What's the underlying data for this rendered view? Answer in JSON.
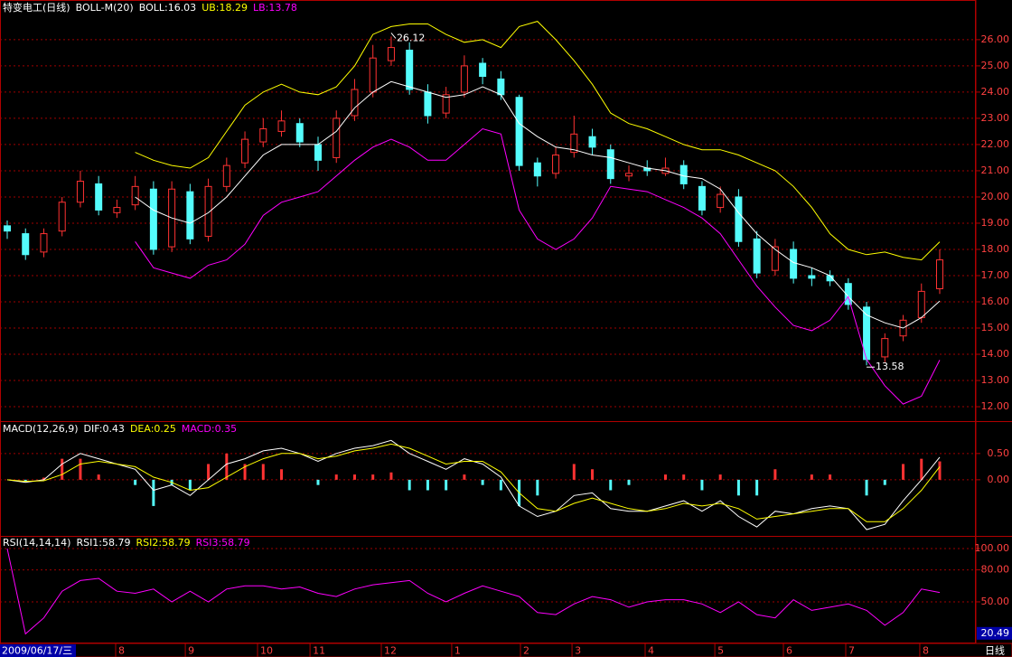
{
  "chart_data": [
    {
      "type": "candlestick",
      "title": "特变电工(日线)",
      "legend": [
        {
          "text": "特变电工(日线)",
          "color": "#ffffff"
        },
        {
          "text": "BOLL-M(20)",
          "color": "#ffffff"
        },
        {
          "text": "BOLL:16.03",
          "color": "#ffffff"
        },
        {
          "text": "UB:18.29",
          "color": "#ffff00"
        },
        {
          "text": "LB:13.78",
          "color": "#ff00ff"
        }
      ],
      "open": [
        18.9,
        18.6,
        17.9,
        18.7,
        19.8,
        20.5,
        19.4,
        19.7,
        20.3,
        18.1,
        20.2,
        18.5,
        20.4,
        21.3,
        22.1,
        22.5,
        22.8,
        22.0,
        21.5,
        23.1,
        24.0,
        25.2,
        25.6,
        24.0,
        23.2,
        24.0,
        25.1,
        24.5,
        23.8,
        21.3,
        20.9,
        21.7,
        22.3,
        21.8,
        20.8,
        21.1,
        20.9,
        21.2,
        20.4,
        19.6,
        20.0,
        18.4,
        17.2,
        18.0,
        17.0,
        17.0,
        16.7,
        15.8,
        13.9,
        14.7,
        15.4,
        16.5
      ],
      "high": [
        19.1,
        18.8,
        18.8,
        20.0,
        21.0,
        20.8,
        19.9,
        20.8,
        20.6,
        20.6,
        20.5,
        20.7,
        21.5,
        22.5,
        23.0,
        23.3,
        23.0,
        22.3,
        23.3,
        24.5,
        25.8,
        26.12,
        25.9,
        24.3,
        24.2,
        25.4,
        25.3,
        24.8,
        23.9,
        21.5,
        21.9,
        23.1,
        22.6,
        22.0,
        21.2,
        21.4,
        21.5,
        21.4,
        20.6,
        20.4,
        20.3,
        18.7,
        18.4,
        18.3,
        17.3,
        17.2,
        16.9,
        16.0,
        14.8,
        15.5,
        16.7,
        18.0
      ],
      "low": [
        18.4,
        17.6,
        17.7,
        18.5,
        19.6,
        19.3,
        19.2,
        19.5,
        17.8,
        17.9,
        18.2,
        18.3,
        20.2,
        21.1,
        21.9,
        22.3,
        21.9,
        21.0,
        21.3,
        22.9,
        23.8,
        25.0,
        23.9,
        22.8,
        23.0,
        23.8,
        24.3,
        23.7,
        21.0,
        20.4,
        20.7,
        21.5,
        21.6,
        20.5,
        20.6,
        20.8,
        20.8,
        20.3,
        19.3,
        19.4,
        18.1,
        16.9,
        17.0,
        16.7,
        16.6,
        16.6,
        15.7,
        13.58,
        13.7,
        14.5,
        15.2,
        16.3
      ],
      "close": [
        18.7,
        17.8,
        18.6,
        19.8,
        20.6,
        19.5,
        19.6,
        20.4,
        18.0,
        20.3,
        18.4,
        20.4,
        21.2,
        22.2,
        22.6,
        22.9,
        22.1,
        21.4,
        23.0,
        24.1,
        25.3,
        25.7,
        24.1,
        23.1,
        23.9,
        25.0,
        24.6,
        23.9,
        21.2,
        20.8,
        21.6,
        22.4,
        21.9,
        20.7,
        20.9,
        21.0,
        21.1,
        20.5,
        19.5,
        20.1,
        18.3,
        17.1,
        18.1,
        16.9,
        16.9,
        16.8,
        15.9,
        13.8,
        14.6,
        15.3,
        16.4,
        17.6
      ],
      "up_color": "#ff3232",
      "down_color": "#54fcfc",
      "series": [
        {
          "color": "#ffffff",
          "values": [
            null,
            null,
            null,
            null,
            null,
            null,
            null,
            20.0,
            19.5,
            19.2,
            19.0,
            19.4,
            20.0,
            20.8,
            21.6,
            22.0,
            22.0,
            22.0,
            22.5,
            23.4,
            24.0,
            24.4,
            24.2,
            24.0,
            23.8,
            23.9,
            24.2,
            23.9,
            22.8,
            22.3,
            21.9,
            21.8,
            21.6,
            21.5,
            21.3,
            21.1,
            21.0,
            20.8,
            20.7,
            20.3,
            19.4,
            18.6,
            18.0,
            17.5,
            17.3,
            17.0,
            16.2,
            15.5,
            15.2,
            15.0,
            15.4,
            16.03
          ]
        },
        {
          "color": "#ffff00",
          "values": [
            null,
            null,
            null,
            null,
            null,
            null,
            null,
            21.7,
            21.4,
            21.2,
            21.1,
            21.5,
            22.5,
            23.5,
            24.0,
            24.3,
            24.0,
            23.9,
            24.2,
            25.0,
            26.2,
            26.5,
            26.6,
            26.6,
            26.2,
            25.9,
            26.0,
            25.7,
            26.5,
            26.7,
            26.0,
            25.2,
            24.3,
            23.2,
            22.8,
            22.6,
            22.3,
            22.0,
            21.8,
            21.8,
            21.6,
            21.3,
            21.0,
            20.4,
            19.6,
            18.6,
            18.0,
            17.8,
            17.9,
            17.7,
            17.6,
            18.29
          ]
        },
        {
          "color": "#ff00ff",
          "values": [
            null,
            null,
            null,
            null,
            null,
            null,
            null,
            18.3,
            17.3,
            17.1,
            16.9,
            17.4,
            17.6,
            18.2,
            19.3,
            19.8,
            20.0,
            20.2,
            20.8,
            21.4,
            21.9,
            22.2,
            21.9,
            21.4,
            21.4,
            22.0,
            22.6,
            22.4,
            19.5,
            18.4,
            18.0,
            18.4,
            19.2,
            20.4,
            20.3,
            20.2,
            19.9,
            19.6,
            19.2,
            18.6,
            17.6,
            16.6,
            15.8,
            15.1,
            14.9,
            15.3,
            16.2,
            13.8,
            12.8,
            12.1,
            12.4,
            13.78
          ]
        }
      ],
      "annotations": {
        "high_label": "26.12",
        "low_label": "13.58"
      },
      "ylim": [
        11.45,
        27.03
      ],
      "yticks": [
        {
          "value": 12,
          "label": "12.00"
        },
        {
          "value": 13,
          "label": "13.00"
        },
        {
          "value": 14,
          "label": "14.00"
        },
        {
          "value": 15,
          "label": "15.00"
        },
        {
          "value": 16,
          "label": "16.00"
        },
        {
          "value": 17,
          "label": "17.00"
        },
        {
          "value": 18,
          "label": "18.00"
        },
        {
          "value": 19,
          "label": "19.00"
        },
        {
          "value": 20,
          "label": "20.00"
        },
        {
          "value": 21,
          "label": "21.00"
        },
        {
          "value": 22,
          "label": "22.00"
        },
        {
          "value": 23,
          "label": "23.00"
        },
        {
          "value": 24,
          "label": "24.00"
        },
        {
          "value": 25,
          "label": "25.00"
        },
        {
          "value": 26,
          "label": "26.00"
        }
      ],
      "grid": true
    },
    {
      "type": "macd",
      "legend": [
        {
          "text": "MACD(12,26,9)",
          "color": "#ffffff"
        },
        {
          "text": "DIF:0.43",
          "color": "#ffffff"
        },
        {
          "text": "DEA:0.25",
          "color": "#ffff00"
        },
        {
          "text": "MACD:0.35",
          "color": "#ff00ff"
        }
      ],
      "bars": [
        0,
        -0.04,
        0.04,
        0.4,
        0.4,
        0.1,
        0,
        -0.1,
        -0.5,
        -0.1,
        -0.2,
        0.3,
        0.5,
        0.3,
        0.3,
        0.2,
        0,
        -0.1,
        0.1,
        0.1,
        0.1,
        0.14,
        -0.2,
        -0.2,
        -0.2,
        0.1,
        -0.1,
        -0.2,
        -0.5,
        -0.3,
        0,
        0.3,
        0.2,
        -0.2,
        -0.1,
        0,
        0.1,
        0.1,
        -0.2,
        0.1,
        -0.3,
        -0.3,
        0.2,
        0,
        0.1,
        0.1,
        0,
        -0.3,
        -0.1,
        0.3,
        0.4,
        0.35
      ],
      "up_color": "#ff3232",
      "down_color": "#54fcfc",
      "series": [
        {
          "color": "#ffffff",
          "values": [
            0.0,
            -0.05,
            0.0,
            0.3,
            0.5,
            0.4,
            0.3,
            0.2,
            -0.2,
            -0.1,
            -0.3,
            0.0,
            0.3,
            0.4,
            0.55,
            0.6,
            0.5,
            0.35,
            0.5,
            0.6,
            0.65,
            0.75,
            0.5,
            0.35,
            0.2,
            0.4,
            0.3,
            0.05,
            -0.5,
            -0.7,
            -0.6,
            -0.3,
            -0.25,
            -0.55,
            -0.6,
            -0.6,
            -0.5,
            -0.4,
            -0.6,
            -0.4,
            -0.7,
            -0.9,
            -0.6,
            -0.65,
            -0.55,
            -0.5,
            -0.55,
            -0.95,
            -0.85,
            -0.4,
            0.0,
            0.43
          ]
        },
        {
          "color": "#ffff00",
          "values": [
            0.0,
            -0.03,
            -0.02,
            0.1,
            0.3,
            0.35,
            0.3,
            0.25,
            0.05,
            -0.05,
            -0.2,
            -0.15,
            0.05,
            0.25,
            0.4,
            0.5,
            0.5,
            0.4,
            0.45,
            0.55,
            0.6,
            0.68,
            0.6,
            0.45,
            0.3,
            0.35,
            0.35,
            0.15,
            -0.25,
            -0.55,
            -0.6,
            -0.45,
            -0.35,
            -0.45,
            -0.55,
            -0.6,
            -0.55,
            -0.45,
            -0.5,
            -0.45,
            -0.55,
            -0.75,
            -0.7,
            -0.65,
            -0.6,
            -0.55,
            -0.55,
            -0.8,
            -0.8,
            -0.55,
            -0.2,
            0.25
          ]
        }
      ],
      "ylim": [
        -1.07,
        1.1
      ],
      "yticks": [
        {
          "value": 0,
          "label": "0.00"
        },
        {
          "value": 0.5,
          "label": "0.50"
        }
      ],
      "grid": true
    },
    {
      "type": "rsi",
      "legend": [
        {
          "text": "RSI(14,14,14)",
          "color": "#ffffff"
        },
        {
          "text": "RSI1:58.79",
          "color": "#ffffff"
        },
        {
          "text": "RSI2:58.79",
          "color": "#ffff00"
        },
        {
          "text": "RSI3:58.79",
          "color": "#ff00ff"
        }
      ],
      "series": [
        {
          "color": "#ff00ff",
          "values": [
            100,
            20,
            35,
            60,
            70,
            72,
            60,
            58,
            62,
            50,
            60,
            50,
            62,
            65,
            65,
            62,
            64,
            58,
            55,
            62,
            66,
            68,
            70,
            58,
            50,
            58,
            65,
            60,
            55,
            40,
            38,
            48,
            55,
            52,
            45,
            50,
            52,
            52,
            48,
            40,
            50,
            38,
            35,
            52,
            42,
            45,
            48,
            42,
            28,
            40,
            62,
            58.79
          ]
        }
      ],
      "ylim": [
        11,
        111
      ],
      "yticks": [
        {
          "value": 50,
          "label": "50.00"
        },
        {
          "value": 80,
          "label": "80.00"
        },
        {
          "value": 100,
          "label": "100.00"
        }
      ],
      "cursor_value": 20.49,
      "grid": true,
      "cursor_date": "2009/06/17/三",
      "period": "日线",
      "xticks": [
        {
          "value": 5.93,
          "label": "8"
        },
        {
          "value": 9.74,
          "label": "9"
        },
        {
          "value": 13.69,
          "label": "10"
        },
        {
          "value": 16.56,
          "label": "11"
        },
        {
          "value": 20.46,
          "label": "12"
        },
        {
          "value": 24.31,
          "label": "1"
        },
        {
          "value": 28.07,
          "label": "2"
        },
        {
          "value": 30.89,
          "label": "3"
        },
        {
          "value": 34.89,
          "label": "4"
        },
        {
          "value": 38.7,
          "label": "5"
        },
        {
          "value": 42.45,
          "label": "6"
        },
        {
          "value": 45.86,
          "label": "7"
        },
        {
          "value": 49.91,
          "label": "8"
        }
      ]
    }
  ]
}
